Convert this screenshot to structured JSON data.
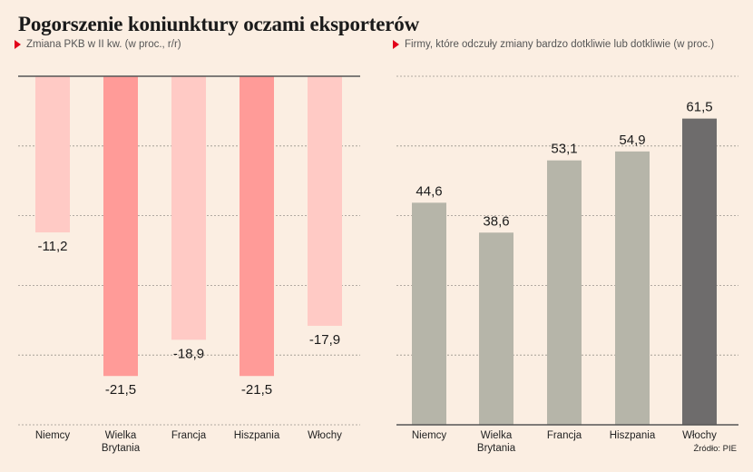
{
  "title": "Pogorszenie koniunktury oczami eksporterów",
  "source": "Źródło: PIE",
  "colors": {
    "light_red": "#ffcac5",
    "dark_red": "#ff9b98",
    "gray": "#b6b5a9",
    "dark_gray": "#6e6c6c",
    "marker": "#e2001a"
  },
  "chart_data": [
    {
      "type": "bar",
      "subtitle": "Zmiana PKB  w II kw. (w proc., r/r)",
      "categories": [
        "Niemcy",
        "Wielka Brytania",
        "Francja",
        "Hiszpania",
        "Włochy"
      ],
      "category_lines": [
        [
          "Niemcy"
        ],
        [
          "Wielka",
          "Brytania"
        ],
        [
          "Francja"
        ],
        [
          "Hiszpania"
        ],
        [
          "Włochy"
        ]
      ],
      "values": [
        -11.2,
        -21.5,
        -18.9,
        -21.5,
        -17.9
      ],
      "value_labels": [
        "-11,2",
        "-21,5",
        "-18,9",
        "-21,5",
        "-17,9"
      ],
      "bar_colors": [
        "#ffcac5",
        "#ff9b98",
        "#ffcac5",
        "#ff9b98",
        "#ffcac5"
      ],
      "ylim": [
        -25,
        0
      ],
      "grid": true
    },
    {
      "type": "bar",
      "subtitle": "Firmy, które odczuły zmiany bardzo dotkliwie lub dotkliwie (w proc.)",
      "categories": [
        "Niemcy",
        "Wielka Brytania",
        "Francja",
        "Hiszpania",
        "Włochy"
      ],
      "category_lines": [
        [
          "Niemcy"
        ],
        [
          "Wielka",
          "Brytania"
        ],
        [
          "Francja"
        ],
        [
          "Hiszpania"
        ],
        [
          "Włochy"
        ]
      ],
      "values": [
        44.6,
        38.6,
        53.1,
        54.9,
        61.5
      ],
      "value_labels": [
        "44,6",
        "38,6",
        "53,1",
        "54,9",
        "61,5"
      ],
      "bar_colors": [
        "#b6b5a9",
        "#b6b5a9",
        "#b6b5a9",
        "#b6b5a9",
        "#6e6c6c"
      ],
      "ylim": [
        0,
        70
      ],
      "grid": true
    }
  ]
}
